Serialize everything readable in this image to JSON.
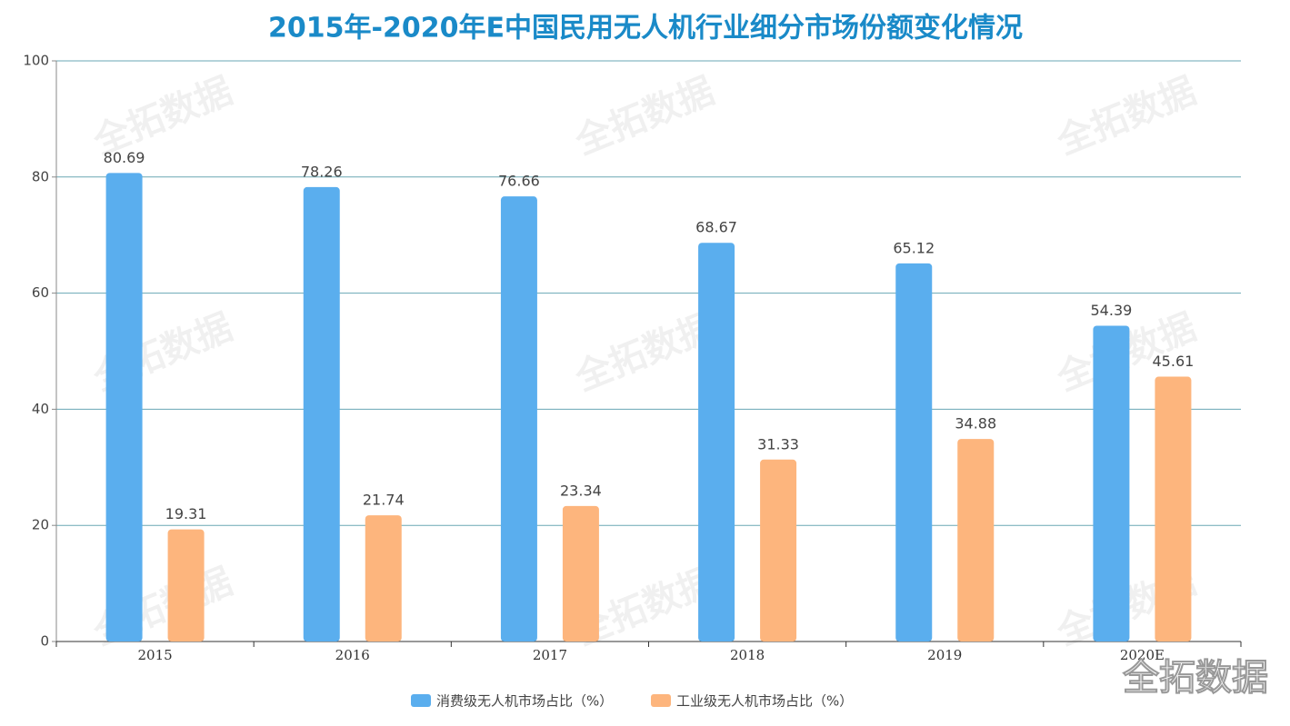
{
  "chart_data": {
    "type": "bar",
    "title": "2015年-2020年E中国民用无人机行业细分市场份额变化情况",
    "categories": [
      "2015",
      "2016",
      "2017",
      "2018",
      "2019",
      "2020E"
    ],
    "series": [
      {
        "name": "消费级无人机市场占比（%）",
        "color": "#5aaeee",
        "values": [
          80.69,
          78.26,
          76.66,
          68.67,
          65.12,
          54.39
        ]
      },
      {
        "name": "工业级无人机市场占比（%）",
        "color": "#fdb57d",
        "values": [
          19.31,
          21.74,
          23.34,
          31.33,
          34.88,
          45.61
        ]
      }
    ],
    "ylim": [
      0,
      100
    ],
    "yticks": [
      0,
      20,
      40,
      60,
      80,
      100
    ],
    "grid": true,
    "legend": "bottom",
    "watermark": "全拓数据"
  }
}
